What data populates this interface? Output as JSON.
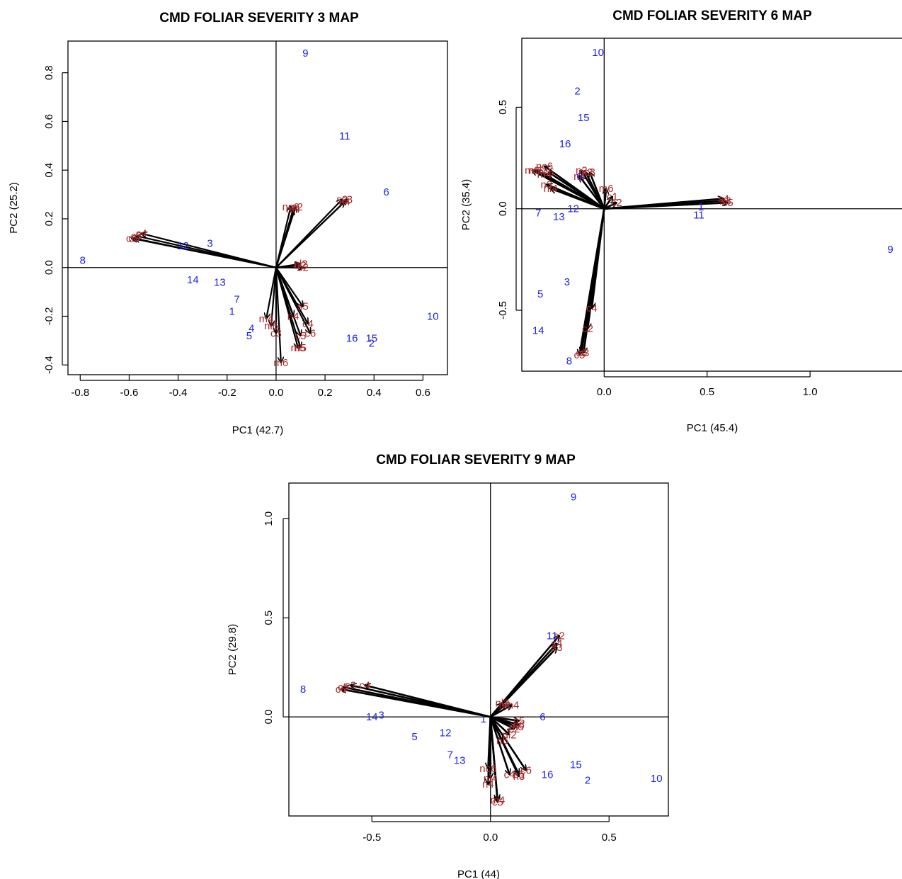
{
  "colors": {
    "observations": "#1f1fe6",
    "variables": "#a52a2a",
    "arrows": "#000000"
  },
  "chart_data": [
    {
      "type": "scatter",
      "subtype": "pca-biplot",
      "title": "CMD FOLIAR SEVERITY 3 MAP",
      "xlabel": "PC1 (42.7)",
      "ylabel": "PC2 (25.2)",
      "xlim": [
        -0.85,
        0.7
      ],
      "ylim": [
        -0.44,
        0.93
      ],
      "xticks": [
        -0.8,
        -0.6,
        -0.4,
        -0.2,
        0.0,
        0.2,
        0.4,
        0.6
      ],
      "xtick_labels": [
        "-0.8",
        "-0.6",
        "-0.4",
        "-0.2",
        "0.0",
        "0.2",
        "0.4",
        "0.6"
      ],
      "yticks": [
        -0.4,
        -0.2,
        0.0,
        0.2,
        0.4,
        0.6,
        0.8
      ],
      "ytick_labels": [
        "-0.4",
        "-0.2",
        "0.0",
        "0.2",
        "0.4",
        "0.6",
        "0.8"
      ],
      "observations": [
        {
          "label": "9",
          "x": 0.12,
          "y": 0.88
        },
        {
          "label": "11",
          "x": 0.28,
          "y": 0.54
        },
        {
          "label": "6",
          "x": 0.45,
          "y": 0.31
        },
        {
          "label": "8",
          "x": -0.79,
          "y": 0.03
        },
        {
          "label": "12",
          "x": -0.38,
          "y": 0.09
        },
        {
          "label": "3",
          "x": -0.27,
          "y": 0.1
        },
        {
          "label": "14",
          "x": -0.34,
          "y": -0.05
        },
        {
          "label": "13",
          "x": -0.23,
          "y": -0.06
        },
        {
          "label": "7",
          "x": -0.16,
          "y": -0.13
        },
        {
          "label": "1",
          "x": -0.18,
          "y": -0.18
        },
        {
          "label": "4",
          "x": -0.1,
          "y": -0.25
        },
        {
          "label": "5",
          "x": -0.11,
          "y": -0.28
        },
        {
          "label": "10",
          "x": 0.64,
          "y": -0.2
        },
        {
          "label": "16",
          "x": 0.31,
          "y": -0.29
        },
        {
          "label": "15",
          "x": 0.39,
          "y": -0.29
        },
        {
          "label": "2",
          "x": 0.39,
          "y": -0.31
        }
      ],
      "variables": [
        {
          "label": "c4",
          "x": -0.55,
          "y": 0.14
        },
        {
          "label": "c3",
          "x": -0.57,
          "y": 0.13
        },
        {
          "label": "c6",
          "x": -0.59,
          "y": 0.12
        },
        {
          "label": "c5",
          "x": -0.58,
          "y": 0.12
        },
        {
          "label": "nc6",
          "x": 0.06,
          "y": 0.25
        },
        {
          "label": "m2",
          "x": 0.08,
          "y": 0.25
        },
        {
          "label": "nl4",
          "x": 0.07,
          "y": 0.24
        },
        {
          "label": "s4",
          "x": 0.28,
          "y": 0.27
        },
        {
          "label": "s3",
          "x": 0.29,
          "y": 0.28
        },
        {
          "label": "s2",
          "x": 0.27,
          "y": 0.28
        },
        {
          "label": "n2",
          "x": 0.1,
          "y": 0.01
        },
        {
          "label": "c2",
          "x": 0.11,
          "y": 0.0
        },
        {
          "label": "nl2",
          "x": 0.1,
          "y": 0.015
        },
        {
          "label": "m4",
          "x": -0.04,
          "y": -0.21
        },
        {
          "label": "nl6",
          "x": -0.02,
          "y": -0.24
        },
        {
          "label": "c3",
          "x": 0.0,
          "y": -0.27
        },
        {
          "label": "n4",
          "x": 0.07,
          "y": -0.2
        },
        {
          "label": "s5",
          "x": 0.11,
          "y": -0.16
        },
        {
          "label": "c4",
          "x": 0.13,
          "y": -0.23
        },
        {
          "label": "c5",
          "x": 0.1,
          "y": -0.28
        },
        {
          "label": "c6",
          "x": 0.14,
          "y": -0.27
        },
        {
          "label": "m5",
          "x": 0.09,
          "y": -0.33
        },
        {
          "label": "n5",
          "x": 0.1,
          "y": -0.33
        },
        {
          "label": "m6",
          "x": 0.02,
          "y": -0.39
        }
      ]
    },
    {
      "type": "scatter",
      "subtype": "pca-biplot",
      "title": "CMD FOLIAR SEVERITY 6 MAP",
      "xlabel": "PC1 (45.4)",
      "ylabel": "PC2 (35.4)",
      "xlim": [
        -0.4,
        1.45
      ],
      "ylim": [
        -0.8,
        0.84
      ],
      "xticks": [
        0.0,
        0.5,
        1.0
      ],
      "xtick_labels": [
        "0.0",
        "0.5",
        "1.0"
      ],
      "yticks": [
        -0.5,
        0.0,
        0.5
      ],
      "ytick_labels": [
        "-0.5",
        "0.0",
        "0.5"
      ],
      "observations": [
        {
          "label": "10",
          "x": -0.03,
          "y": 0.77
        },
        {
          "label": "2",
          "x": -0.13,
          "y": 0.58
        },
        {
          "label": "15",
          "x": -0.1,
          "y": 0.45
        },
        {
          "label": "16",
          "x": -0.19,
          "y": 0.32
        },
        {
          "label": "6",
          "x": -0.12,
          "y": 0.16
        },
        {
          "label": "7",
          "x": -0.32,
          "y": -0.02
        },
        {
          "label": "12",
          "x": -0.15,
          "y": 0.0
        },
        {
          "label": "13",
          "x": -0.22,
          "y": -0.04
        },
        {
          "label": "1",
          "x": 0.47,
          "y": 0.01
        },
        {
          "label": "11",
          "x": 0.46,
          "y": -0.03
        },
        {
          "label": "9",
          "x": 1.39,
          "y": -0.2
        },
        {
          "label": "3",
          "x": -0.18,
          "y": -0.36
        },
        {
          "label": "5",
          "x": -0.31,
          "y": -0.42
        },
        {
          "label": "14",
          "x": -0.32,
          "y": -0.6
        },
        {
          "label": "8",
          "x": -0.17,
          "y": -0.75
        }
      ],
      "variables": [
        {
          "label": "nc6",
          "x": -0.29,
          "y": 0.21
        },
        {
          "label": "m6",
          "x": -0.35,
          "y": 0.19
        },
        {
          "label": "m5",
          "x": -0.33,
          "y": 0.19
        },
        {
          "label": "s5",
          "x": -0.27,
          "y": 0.18
        },
        {
          "label": "m4",
          "x": -0.29,
          "y": 0.17
        },
        {
          "label": "n3",
          "x": -0.28,
          "y": 0.12
        },
        {
          "label": "nl4",
          "x": -0.26,
          "y": 0.1
        },
        {
          "label": "n2",
          "x": -0.11,
          "y": 0.19
        },
        {
          "label": "m2",
          "x": -0.09,
          "y": 0.18
        },
        {
          "label": "c3",
          "x": -0.07,
          "y": 0.18
        },
        {
          "label": "n4",
          "x": -0.12,
          "y": 0.16
        },
        {
          "label": "m6",
          "x": 0.01,
          "y": 0.1
        },
        {
          "label": "c1",
          "x": 0.04,
          "y": 0.06
        },
        {
          "label": "c2",
          "x": 0.06,
          "y": 0.03
        },
        {
          "label": "s4",
          "x": 0.58,
          "y": 0.05
        },
        {
          "label": "s3",
          "x": 0.59,
          "y": 0.04
        },
        {
          "label": "s5",
          "x": 0.6,
          "y": 0.03
        },
        {
          "label": "c4",
          "x": -0.06,
          "y": -0.49
        },
        {
          "label": "c2",
          "x": -0.08,
          "y": -0.59
        },
        {
          "label": "c6",
          "x": -0.11,
          "y": -0.71
        },
        {
          "label": "c5",
          "x": -0.12,
          "y": -0.72
        },
        {
          "label": "c3",
          "x": -0.1,
          "y": -0.71
        }
      ]
    },
    {
      "type": "scatter",
      "subtype": "pca-biplot",
      "title": "CMD FOLIAR SEVERITY 9 MAP",
      "xlabel": "PC1 (44)",
      "ylabel": "PC2 (29.8)",
      "xlim": [
        -0.85,
        0.75
      ],
      "ylim": [
        -0.5,
        1.18
      ],
      "xticks": [
        -0.5,
        0.0,
        0.5
      ],
      "xtick_labels": [
        "-0.5",
        "0.0",
        "0.5"
      ],
      "yticks": [
        0.0,
        0.5,
        1.0
      ],
      "ytick_labels": [
        "0.0",
        "0.5",
        "1.0"
      ],
      "observations": [
        {
          "label": "9",
          "x": 0.35,
          "y": 1.11
        },
        {
          "label": "11",
          "x": 0.26,
          "y": 0.41
        },
        {
          "label": "8",
          "x": -0.79,
          "y": 0.14
        },
        {
          "label": "14",
          "x": -0.5,
          "y": 0.0
        },
        {
          "label": "3",
          "x": -0.46,
          "y": 0.01
        },
        {
          "label": "6",
          "x": 0.22,
          "y": 0.0
        },
        {
          "label": "1",
          "x": -0.03,
          "y": -0.01
        },
        {
          "label": "12",
          "x": -0.19,
          "y": -0.08
        },
        {
          "label": "5",
          "x": -0.32,
          "y": -0.1
        },
        {
          "label": "7",
          "x": -0.17,
          "y": -0.19
        },
        {
          "label": "13",
          "x": -0.13,
          "y": -0.22
        },
        {
          "label": "15",
          "x": 0.36,
          "y": -0.24
        },
        {
          "label": "16",
          "x": 0.24,
          "y": -0.29
        },
        {
          "label": "2",
          "x": 0.41,
          "y": -0.32
        },
        {
          "label": "10",
          "x": 0.7,
          "y": -0.31
        }
      ],
      "variables": [
        {
          "label": "c4",
          "x": -0.53,
          "y": 0.16
        },
        {
          "label": "c3",
          "x": -0.59,
          "y": 0.16
        },
        {
          "label": "c5",
          "x": -0.62,
          "y": 0.15
        },
        {
          "label": "c6",
          "x": -0.63,
          "y": 0.14
        },
        {
          "label": "s2",
          "x": 0.29,
          "y": 0.41
        },
        {
          "label": "s4",
          "x": 0.28,
          "y": 0.37
        },
        {
          "label": "s3",
          "x": 0.28,
          "y": 0.35
        },
        {
          "label": "nl2",
          "x": 0.05,
          "y": 0.07
        },
        {
          "label": "m4",
          "x": 0.09,
          "y": 0.06
        },
        {
          "label": "n2",
          "x": 0.06,
          "y": 0.06
        },
        {
          "label": "n5",
          "x": 0.12,
          "y": -0.02
        },
        {
          "label": "c6",
          "x": 0.12,
          "y": -0.04
        },
        {
          "label": "m5",
          "x": 0.11,
          "y": -0.05
        },
        {
          "label": "c2",
          "x": 0.1,
          "y": -0.06
        },
        {
          "label": "nl2",
          "x": 0.08,
          "y": -0.09
        },
        {
          "label": "n6",
          "x": 0.05,
          "y": -0.12
        },
        {
          "label": "c6",
          "x": 0.15,
          "y": -0.27
        },
        {
          "label": "c4",
          "x": 0.08,
          "y": -0.29
        },
        {
          "label": "n3",
          "x": 0.12,
          "y": -0.3
        },
        {
          "label": "c5",
          "x": 0.12,
          "y": -0.29
        },
        {
          "label": "nc6",
          "x": -0.01,
          "y": -0.26
        },
        {
          "label": "nl4",
          "x": 0.0,
          "y": -0.31
        },
        {
          "label": "n4",
          "x": -0.01,
          "y": -0.34
        },
        {
          "label": "m4",
          "x": 0.03,
          "y": -0.42
        },
        {
          "label": "c5",
          "x": 0.03,
          "y": -0.43
        }
      ]
    }
  ]
}
